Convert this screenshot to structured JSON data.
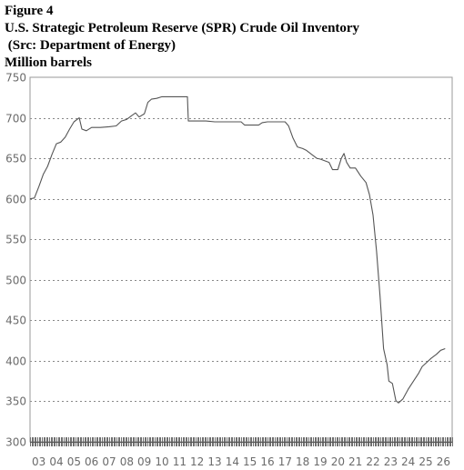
{
  "figure_label": "Figure 4",
  "title": "U.S. Strategic Petroleum Reserve (SPR) Crude Oil Inventory",
  "subtitle": " (Src: Department of Energy)",
  "unit_label": "Million barrels",
  "chart_data": {
    "type": "line",
    "title": "U.S. Strategic Petroleum Reserve (SPR) Crude Oil Inventory",
    "subtitle": "(Src: Department of Energy)",
    "ylabel": "Million barrels",
    "xlabel": "",
    "ylim": [
      300,
      750
    ],
    "xlim": [
      2002.5,
      2026.5
    ],
    "yticks": [
      300,
      350,
      400,
      450,
      500,
      550,
      600,
      650,
      700,
      750
    ],
    "xtick_labels": [
      "03",
      "04",
      "05",
      "06",
      "07",
      "08",
      "09",
      "10",
      "11",
      "12",
      "13",
      "14",
      "15",
      "16",
      "17",
      "18",
      "19",
      "20",
      "21",
      "22",
      "23",
      "24",
      "25",
      "26"
    ],
    "grid": true,
    "legend": "none",
    "line_color": "#555555",
    "grid_color": "#888888",
    "series": [
      {
        "values": [
          [
            2002.5,
            600
          ],
          [
            2002.75,
            601
          ],
          [
            2003.0,
            615
          ],
          [
            2003.25,
            630
          ],
          [
            2003.5,
            640
          ],
          [
            2003.75,
            655
          ],
          [
            2004.0,
            668
          ],
          [
            2004.25,
            670
          ],
          [
            2004.5,
            676
          ],
          [
            2004.75,
            686
          ],
          [
            2005.0,
            695
          ],
          [
            2005.3,
            700
          ],
          [
            2005.45,
            686
          ],
          [
            2005.7,
            684
          ],
          [
            2006.0,
            688
          ],
          [
            2006.5,
            688
          ],
          [
            2007.0,
            689
          ],
          [
            2007.4,
            690
          ],
          [
            2007.7,
            696
          ],
          [
            2008.0,
            698
          ],
          [
            2008.3,
            703
          ],
          [
            2008.5,
            706
          ],
          [
            2008.7,
            701
          ],
          [
            2009.0,
            705
          ],
          [
            2009.2,
            719
          ],
          [
            2009.4,
            723
          ],
          [
            2009.7,
            724
          ],
          [
            2010.0,
            726
          ],
          [
            2010.5,
            726
          ],
          [
            2011.0,
            726
          ],
          [
            2011.45,
            726
          ],
          [
            2011.5,
            696
          ],
          [
            2012.0,
            696
          ],
          [
            2012.5,
            696
          ],
          [
            2013.0,
            695
          ],
          [
            2013.5,
            695
          ],
          [
            2014.0,
            695
          ],
          [
            2014.5,
            695
          ],
          [
            2014.7,
            691
          ],
          [
            2015.0,
            691
          ],
          [
            2015.5,
            691
          ],
          [
            2015.7,
            694
          ],
          [
            2016.0,
            695
          ],
          [
            2016.5,
            695
          ],
          [
            2017.0,
            695
          ],
          [
            2017.2,
            690
          ],
          [
            2017.45,
            675
          ],
          [
            2017.7,
            664
          ],
          [
            2018.0,
            662
          ],
          [
            2018.2,
            660
          ],
          [
            2018.5,
            655
          ],
          [
            2018.8,
            650
          ],
          [
            2019.0,
            649
          ],
          [
            2019.5,
            645
          ],
          [
            2019.7,
            636
          ],
          [
            2020.0,
            636
          ],
          [
            2020.2,
            650
          ],
          [
            2020.35,
            656
          ],
          [
            2020.5,
            645
          ],
          [
            2020.7,
            638
          ],
          [
            2021.0,
            638
          ],
          [
            2021.3,
            628
          ],
          [
            2021.6,
            620
          ],
          [
            2021.8,
            605
          ],
          [
            2022.0,
            580
          ],
          [
            2022.2,
            535
          ],
          [
            2022.4,
            480
          ],
          [
            2022.6,
            415
          ],
          [
            2022.8,
            395
          ],
          [
            2022.9,
            375
          ],
          [
            2023.1,
            372
          ],
          [
            2023.3,
            351
          ],
          [
            2023.45,
            348
          ],
          [
            2023.7,
            353
          ],
          [
            2024.0,
            365
          ],
          [
            2024.3,
            375
          ],
          [
            2024.6,
            385
          ],
          [
            2024.8,
            393
          ],
          [
            2025.0,
            397
          ],
          [
            2025.3,
            403
          ],
          [
            2025.6,
            408
          ],
          [
            2025.85,
            413
          ],
          [
            2026.1,
            415
          ]
        ]
      }
    ]
  }
}
